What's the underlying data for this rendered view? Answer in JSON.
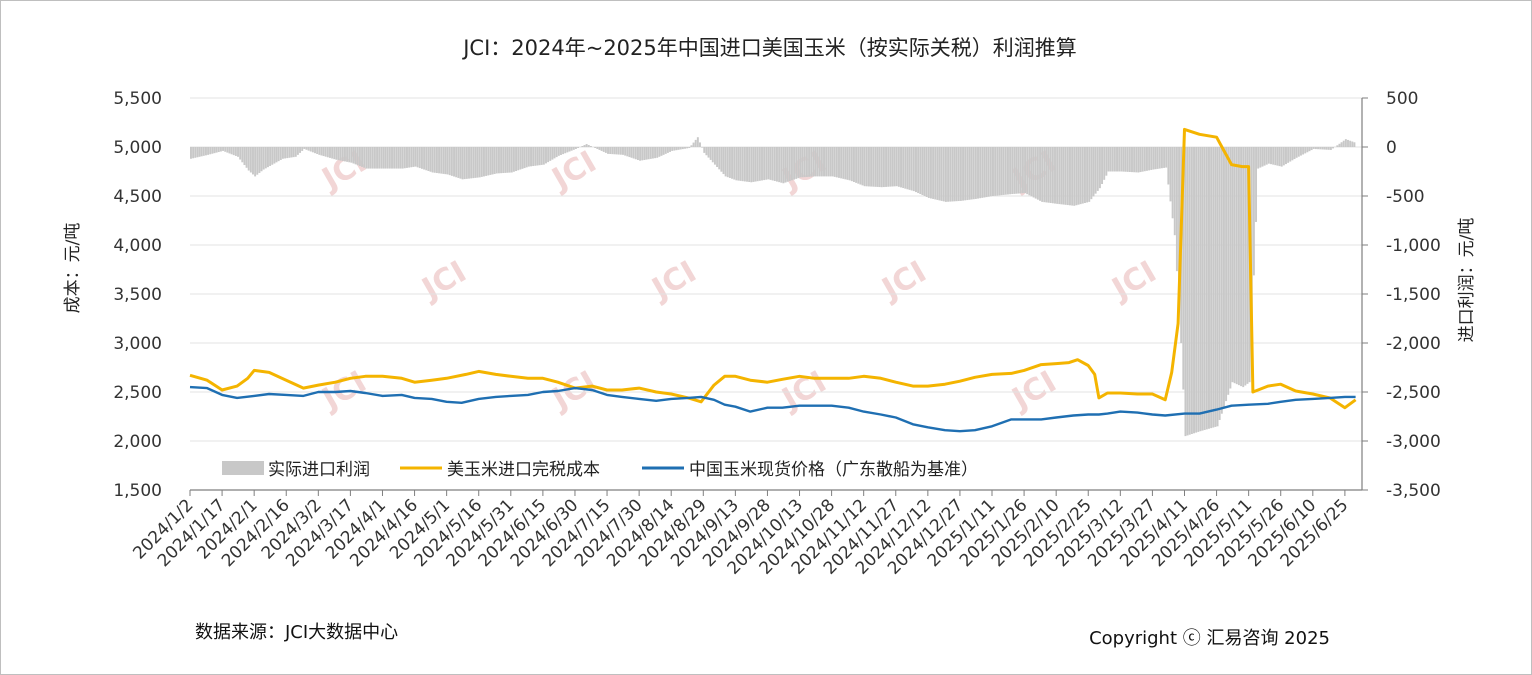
{
  "chart_data": {
    "type": "bar+line",
    "title": "JCI：2024年~2025年中国进口美国玉米（按实际关税）利润推算",
    "ylabel_left": "成本：元/吨",
    "ylabel_right": "进口利润：元/吨",
    "ylim_left": [
      1500,
      5500
    ],
    "ylim_right": [
      -3500,
      500
    ],
    "yticks_left": [
      "1,500",
      "2,000",
      "2,500",
      "3,000",
      "3,500",
      "4,000",
      "4,500",
      "5,000",
      "5,500"
    ],
    "yticks_right": [
      "-3,500",
      "-3,000",
      "-2,500",
      "-2,000",
      "-1,500",
      "-1,000",
      "-500",
      "0",
      "500"
    ],
    "x_dates": [
      "2024/1/2",
      "2024/1/17",
      "2024/2/1",
      "2024/2/16",
      "2024/3/2",
      "2024/3/17",
      "2024/4/1",
      "2024/4/16",
      "2024/5/1",
      "2024/5/16",
      "2024/5/31",
      "2024/6/15",
      "2024/6/30",
      "2024/7/15",
      "2024/7/30",
      "2024/8/14",
      "2024/8/29",
      "2024/9/13",
      "2024/9/28",
      "2024/10/13",
      "2024/10/28",
      "2024/11/12",
      "2024/11/27",
      "2024/12/12",
      "2024/12/27",
      "2025/1/11",
      "2025/1/26",
      "2025/2/10",
      "2025/2/25",
      "2025/3/12",
      "2025/3/27",
      "2025/4/11",
      "2025/4/26",
      "2025/5/11",
      "2025/5/26",
      "2025/6/10",
      "2025/6/25"
    ],
    "legend_position": "bottom-left",
    "series": [
      {
        "name": "实际进口利润",
        "type": "bar",
        "axis": "right",
        "color": "#c8c8c8",
        "points": [
          [
            "2024/1/2",
            -120
          ],
          [
            "2024/1/10",
            -80
          ],
          [
            "2024/1/17",
            -40
          ],
          [
            "2024/1/24",
            -100
          ],
          [
            "2024/1/29",
            -240
          ],
          [
            "2024/2/1",
            -300
          ],
          [
            "2024/2/5",
            -230
          ],
          [
            "2024/2/14",
            -120
          ],
          [
            "2024/2/20",
            -100
          ],
          [
            "2024/2/24",
            -20
          ],
          [
            "2024/3/2",
            -80
          ],
          [
            "2024/3/10",
            -130
          ],
          [
            "2024/3/17",
            -160
          ],
          [
            "2024/3/24",
            -220
          ],
          [
            "2024/4/1",
            -220
          ],
          [
            "2024/4/10",
            -220
          ],
          [
            "2024/4/16",
            -200
          ],
          [
            "2024/4/24",
            -260
          ],
          [
            "2024/5/1",
            -280
          ],
          [
            "2024/5/8",
            -330
          ],
          [
            "2024/5/16",
            -310
          ],
          [
            "2024/5/24",
            -270
          ],
          [
            "2024/5/31",
            -260
          ],
          [
            "2024/6/8",
            -200
          ],
          [
            "2024/6/15",
            -180
          ],
          [
            "2024/6/22",
            -90
          ],
          [
            "2024/6/30",
            -20
          ],
          [
            "2024/7/5",
            30
          ],
          [
            "2024/7/15",
            -70
          ],
          [
            "2024/7/22",
            -80
          ],
          [
            "2024/7/30",
            -140
          ],
          [
            "2024/8/7",
            -110
          ],
          [
            "2024/8/14",
            -40
          ],
          [
            "2024/8/22",
            -10
          ],
          [
            "2024/8/26",
            100
          ],
          [
            "2024/8/29",
            -60
          ],
          [
            "2024/9/3",
            -180
          ],
          [
            "2024/9/8",
            -300
          ],
          [
            "2024/9/13",
            -340
          ],
          [
            "2024/9/20",
            -360
          ],
          [
            "2024/9/28",
            -330
          ],
          [
            "2024/10/5",
            -370
          ],
          [
            "2024/10/13",
            -310
          ],
          [
            "2024/10/20",
            -300
          ],
          [
            "2024/10/28",
            -300
          ],
          [
            "2024/11/5",
            -340
          ],
          [
            "2024/11/12",
            -400
          ],
          [
            "2024/11/20",
            -410
          ],
          [
            "2024/11/27",
            -400
          ],
          [
            "2024/12/5",
            -450
          ],
          [
            "2024/12/12",
            -520
          ],
          [
            "2024/12/20",
            -560
          ],
          [
            "2024/12/27",
            -550
          ],
          [
            "2025/1/3",
            -530
          ],
          [
            "2025/1/11",
            -500
          ],
          [
            "2025/1/20",
            -480
          ],
          [
            "2025/1/26",
            -470
          ],
          [
            "2025/2/3",
            -560
          ],
          [
            "2025/2/10",
            -580
          ],
          [
            "2025/2/18",
            -600
          ],
          [
            "2025/2/25",
            -560
          ],
          [
            "2025/3/2",
            -420
          ],
          [
            "2025/3/6",
            -250
          ],
          [
            "2025/3/12",
            -250
          ],
          [
            "2025/3/20",
            -260
          ],
          [
            "2025/3/27",
            -230
          ],
          [
            "2025/4/2",
            -210
          ],
          [
            "2025/4/6",
            -900
          ],
          [
            "2025/4/9",
            -2000
          ],
          [
            "2025/4/11",
            -2950
          ],
          [
            "2025/4/18",
            -2900
          ],
          [
            "2025/4/26",
            -2850
          ],
          [
            "2025/5/3",
            -2400
          ],
          [
            "2025/5/8",
            -2450
          ],
          [
            "2025/5/11",
            -2400
          ],
          [
            "2025/5/15",
            -220
          ],
          [
            "2025/5/20",
            -170
          ],
          [
            "2025/5/26",
            -200
          ],
          [
            "2025/6/2",
            -110
          ],
          [
            "2025/6/10",
            -20
          ],
          [
            "2025/6/18",
            -30
          ],
          [
            "2025/6/25",
            80
          ],
          [
            "2025/6/30",
            40
          ]
        ]
      },
      {
        "name": "美玉米进口完税成本",
        "type": "line",
        "axis": "left",
        "color": "#f4b400",
        "points": [
          [
            "2024/1/2",
            2670
          ],
          [
            "2024/1/10",
            2620
          ],
          [
            "2024/1/17",
            2520
          ],
          [
            "2024/1/24",
            2560
          ],
          [
            "2024/1/29",
            2640
          ],
          [
            "2024/2/1",
            2720
          ],
          [
            "2024/2/8",
            2700
          ],
          [
            "2024/2/16",
            2620
          ],
          [
            "2024/2/24",
            2540
          ],
          [
            "2024/3/2",
            2570
          ],
          [
            "2024/3/10",
            2600
          ],
          [
            "2024/3/17",
            2640
          ],
          [
            "2024/3/24",
            2660
          ],
          [
            "2024/4/1",
            2660
          ],
          [
            "2024/4/10",
            2640
          ],
          [
            "2024/4/16",
            2600
          ],
          [
            "2024/4/24",
            2620
          ],
          [
            "2024/5/1",
            2640
          ],
          [
            "2024/5/10",
            2680
          ],
          [
            "2024/5/16",
            2710
          ],
          [
            "2024/5/24",
            2680
          ],
          [
            "2024/5/31",
            2660
          ],
          [
            "2024/6/8",
            2640
          ],
          [
            "2024/6/15",
            2640
          ],
          [
            "2024/6/22",
            2600
          ],
          [
            "2024/6/30",
            2540
          ],
          [
            "2024/7/8",
            2560
          ],
          [
            "2024/7/15",
            2520
          ],
          [
            "2024/7/22",
            2520
          ],
          [
            "2024/7/30",
            2540
          ],
          [
            "2024/8/7",
            2500
          ],
          [
            "2024/8/14",
            2480
          ],
          [
            "2024/8/22",
            2440
          ],
          [
            "2024/8/28",
            2400
          ],
          [
            "2024/9/3",
            2570
          ],
          [
            "2024/9/8",
            2660
          ],
          [
            "2024/9/13",
            2660
          ],
          [
            "2024/9/20",
            2620
          ],
          [
            "2024/9/28",
            2600
          ],
          [
            "2024/10/5",
            2630
          ],
          [
            "2024/10/13",
            2660
          ],
          [
            "2024/10/20",
            2640
          ],
          [
            "2024/10/28",
            2640
          ],
          [
            "2024/11/5",
            2640
          ],
          [
            "2024/11/12",
            2660
          ],
          [
            "2024/11/20",
            2640
          ],
          [
            "2024/11/27",
            2600
          ],
          [
            "2024/12/5",
            2560
          ],
          [
            "2024/12/12",
            2560
          ],
          [
            "2024/12/20",
            2580
          ],
          [
            "2024/12/27",
            2610
          ],
          [
            "2025/1/3",
            2650
          ],
          [
            "2025/1/11",
            2680
          ],
          [
            "2025/1/20",
            2690
          ],
          [
            "2025/1/26",
            2720
          ],
          [
            "2025/2/3",
            2780
          ],
          [
            "2025/2/10",
            2790
          ],
          [
            "2025/2/16",
            2800
          ],
          [
            "2025/2/20",
            2830
          ],
          [
            "2025/2/25",
            2770
          ],
          [
            "2025/2/28",
            2680
          ],
          [
            "2025/3/2",
            2440
          ],
          [
            "2025/3/6",
            2490
          ],
          [
            "2025/3/12",
            2490
          ],
          [
            "2025/3/20",
            2480
          ],
          [
            "2025/3/27",
            2480
          ],
          [
            "2025/4/2",
            2420
          ],
          [
            "2025/4/5",
            2700
          ],
          [
            "2025/4/8",
            3200
          ],
          [
            "2025/4/11",
            5180
          ],
          [
            "2025/4/18",
            5130
          ],
          [
            "2025/4/26",
            5100
          ],
          [
            "2025/5/3",
            4820
          ],
          [
            "2025/5/8",
            4800
          ],
          [
            "2025/5/11",
            4800
          ],
          [
            "2025/5/13",
            2500
          ],
          [
            "2025/5/20",
            2560
          ],
          [
            "2025/5/26",
            2580
          ],
          [
            "2025/6/2",
            2510
          ],
          [
            "2025/6/10",
            2480
          ],
          [
            "2025/6/18",
            2440
          ],
          [
            "2025/6/25",
            2340
          ],
          [
            "2025/6/30",
            2420
          ]
        ]
      },
      {
        "name": "中国玉米现货价格（广东散船为基准）",
        "type": "line",
        "axis": "left",
        "color": "#1f6fb2",
        "points": [
          [
            "2024/1/2",
            2550
          ],
          [
            "2024/1/10",
            2540
          ],
          [
            "2024/1/17",
            2470
          ],
          [
            "2024/1/24",
            2440
          ],
          [
            "2024/2/1",
            2460
          ],
          [
            "2024/2/8",
            2480
          ],
          [
            "2024/2/16",
            2470
          ],
          [
            "2024/2/24",
            2460
          ],
          [
            "2024/3/2",
            2500
          ],
          [
            "2024/3/10",
            2500
          ],
          [
            "2024/3/17",
            2510
          ],
          [
            "2024/3/24",
            2490
          ],
          [
            "2024/4/1",
            2460
          ],
          [
            "2024/4/10",
            2470
          ],
          [
            "2024/4/16",
            2440
          ],
          [
            "2024/4/24",
            2430
          ],
          [
            "2024/5/1",
            2400
          ],
          [
            "2024/5/8",
            2390
          ],
          [
            "2024/5/16",
            2430
          ],
          [
            "2024/5/24",
            2450
          ],
          [
            "2024/5/31",
            2460
          ],
          [
            "2024/6/8",
            2470
          ],
          [
            "2024/6/15",
            2500
          ],
          [
            "2024/6/22",
            2510
          ],
          [
            "2024/6/30",
            2540
          ],
          [
            "2024/7/8",
            2520
          ],
          [
            "2024/7/15",
            2470
          ],
          [
            "2024/7/22",
            2450
          ],
          [
            "2024/7/30",
            2430
          ],
          [
            "2024/8/7",
            2410
          ],
          [
            "2024/8/14",
            2430
          ],
          [
            "2024/8/22",
            2440
          ],
          [
            "2024/8/28",
            2450
          ],
          [
            "2024/9/3",
            2420
          ],
          [
            "2024/9/8",
            2370
          ],
          [
            "2024/9/13",
            2350
          ],
          [
            "2024/9/20",
            2300
          ],
          [
            "2024/9/28",
            2340
          ],
          [
            "2024/10/5",
            2340
          ],
          [
            "2024/10/13",
            2360
          ],
          [
            "2024/10/20",
            2360
          ],
          [
            "2024/10/28",
            2360
          ],
          [
            "2024/11/5",
            2340
          ],
          [
            "2024/11/12",
            2300
          ],
          [
            "2024/11/20",
            2270
          ],
          [
            "2024/11/27",
            2240
          ],
          [
            "2024/12/5",
            2170
          ],
          [
            "2024/12/12",
            2140
          ],
          [
            "2024/12/20",
            2110
          ],
          [
            "2024/12/27",
            2100
          ],
          [
            "2025/1/3",
            2110
          ],
          [
            "2025/1/11",
            2150
          ],
          [
            "2025/1/20",
            2220
          ],
          [
            "2025/1/26",
            2220
          ],
          [
            "2025/2/3",
            2220
          ],
          [
            "2025/2/10",
            2240
          ],
          [
            "2025/2/18",
            2260
          ],
          [
            "2025/2/25",
            2270
          ],
          [
            "2025/3/2",
            2270
          ],
          [
            "2025/3/6",
            2280
          ],
          [
            "2025/3/12",
            2300
          ],
          [
            "2025/3/20",
            2290
          ],
          [
            "2025/3/27",
            2270
          ],
          [
            "2025/4/2",
            2260
          ],
          [
            "2025/4/11",
            2280
          ],
          [
            "2025/4/18",
            2280
          ],
          [
            "2025/4/26",
            2320
          ],
          [
            "2025/5/3",
            2360
          ],
          [
            "2025/5/11",
            2370
          ],
          [
            "2025/5/20",
            2380
          ],
          [
            "2025/5/26",
            2400
          ],
          [
            "2025/6/2",
            2420
          ],
          [
            "2025/6/10",
            2430
          ],
          [
            "2025/6/18",
            2440
          ],
          [
            "2025/6/25",
            2450
          ],
          [
            "2025/6/30",
            2450
          ]
        ]
      }
    ]
  },
  "footer": {
    "source": "数据来源：JCI大数据中心",
    "copyright": "Copyright ⓒ 汇易咨询 2025"
  },
  "watermark": "JCI"
}
